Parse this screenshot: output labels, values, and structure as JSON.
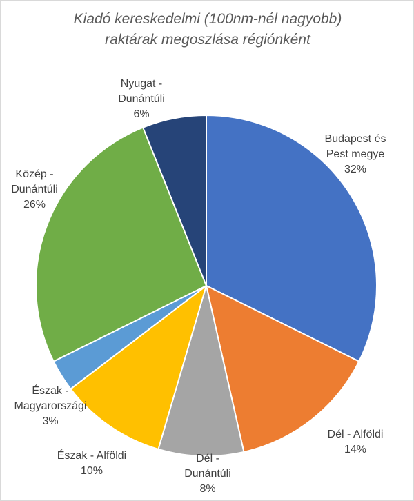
{
  "chart_data": {
    "type": "pie",
    "title_lines": [
      "Kiadó kereskedelmi (100nm-nél nagyobb)",
      "raktárak megoszlása régiónként"
    ],
    "slices": [
      {
        "label_lines": [
          "Budapest és",
          "Pest megye"
        ],
        "value": 32,
        "display": "32%",
        "color": "#4472C4"
      },
      {
        "label_lines": [
          "Dél - Alföldi"
        ],
        "value": 14,
        "display": "14%",
        "color": "#ED7D31"
      },
      {
        "label_lines": [
          "Dél -",
          "Dunántúli"
        ],
        "value": 8,
        "display": "8%",
        "color": "#A5A5A5"
      },
      {
        "label_lines": [
          "Észak - Alföldi"
        ],
        "value": 10,
        "display": "10%",
        "color": "#FFC000"
      },
      {
        "label_lines": [
          "Észak -",
          "Magyarországi"
        ],
        "value": 3,
        "display": "3%",
        "color": "#5B9BD5"
      },
      {
        "label_lines": [
          "Közép -",
          "Dunántúli"
        ],
        "value": 26,
        "display": "26%",
        "color": "#70AD47"
      },
      {
        "label_lines": [
          "Nyugat -",
          "Dunántúli"
        ],
        "value": 6,
        "display": "6%",
        "color": "#264478"
      }
    ]
  }
}
